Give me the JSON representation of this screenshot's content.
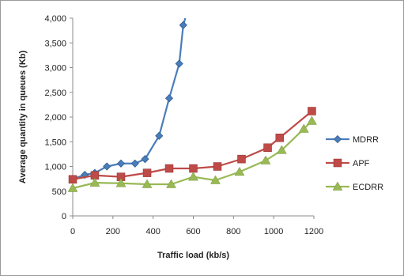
{
  "chart_data": {
    "type": "line",
    "title": "",
    "xlabel": "Traffic load (kb/s)",
    "ylabel": "Average quantity in queues (Kb)",
    "xlim": [
      0,
      1200
    ],
    "ylim": [
      0,
      4000
    ],
    "x_ticks": [
      "0",
      "200",
      "400",
      "600",
      "800",
      "1000",
      "1200"
    ],
    "y_ticks": [
      "0",
      "500",
      "1,000",
      "1,500",
      "2,000",
      "2,500",
      "3,000",
      "3,500",
      "4,000"
    ],
    "grid": false,
    "legend_position": "right",
    "series": [
      {
        "name": "MDRR",
        "color": "#4a7ebb",
        "marker": "diamond",
        "points": [
          {
            "x": 0,
            "y": 750
          },
          {
            "x": 60,
            "y": 830
          },
          {
            "x": 110,
            "y": 870
          },
          {
            "x": 170,
            "y": 1000
          },
          {
            "x": 240,
            "y": 1060
          },
          {
            "x": 310,
            "y": 1060
          },
          {
            "x": 360,
            "y": 1150
          },
          {
            "x": 430,
            "y": 1620
          },
          {
            "x": 480,
            "y": 2380
          },
          {
            "x": 530,
            "y": 3080
          },
          {
            "x": 550,
            "y": 3860
          },
          {
            "x": 560,
            "y": 4000
          }
        ]
      },
      {
        "name": "APF",
        "color": "#be4b48",
        "marker": "square",
        "points": [
          {
            "x": 0,
            "y": 740
          },
          {
            "x": 110,
            "y": 820
          },
          {
            "x": 240,
            "y": 790
          },
          {
            "x": 370,
            "y": 870
          },
          {
            "x": 480,
            "y": 960
          },
          {
            "x": 600,
            "y": 960
          },
          {
            "x": 720,
            "y": 1000
          },
          {
            "x": 840,
            "y": 1150
          },
          {
            "x": 970,
            "y": 1380
          },
          {
            "x": 1030,
            "y": 1580
          },
          {
            "x": 1190,
            "y": 2120
          }
        ]
      },
      {
        "name": "ECDRR",
        "color": "#98b954",
        "marker": "triangle",
        "points": [
          {
            "x": 0,
            "y": 560
          },
          {
            "x": 110,
            "y": 670
          },
          {
            "x": 240,
            "y": 660
          },
          {
            "x": 370,
            "y": 640
          },
          {
            "x": 490,
            "y": 640
          },
          {
            "x": 600,
            "y": 790
          },
          {
            "x": 710,
            "y": 720
          },
          {
            "x": 830,
            "y": 890
          },
          {
            "x": 960,
            "y": 1120
          },
          {
            "x": 1040,
            "y": 1330
          },
          {
            "x": 1150,
            "y": 1760
          },
          {
            "x": 1190,
            "y": 1920
          }
        ]
      }
    ]
  }
}
